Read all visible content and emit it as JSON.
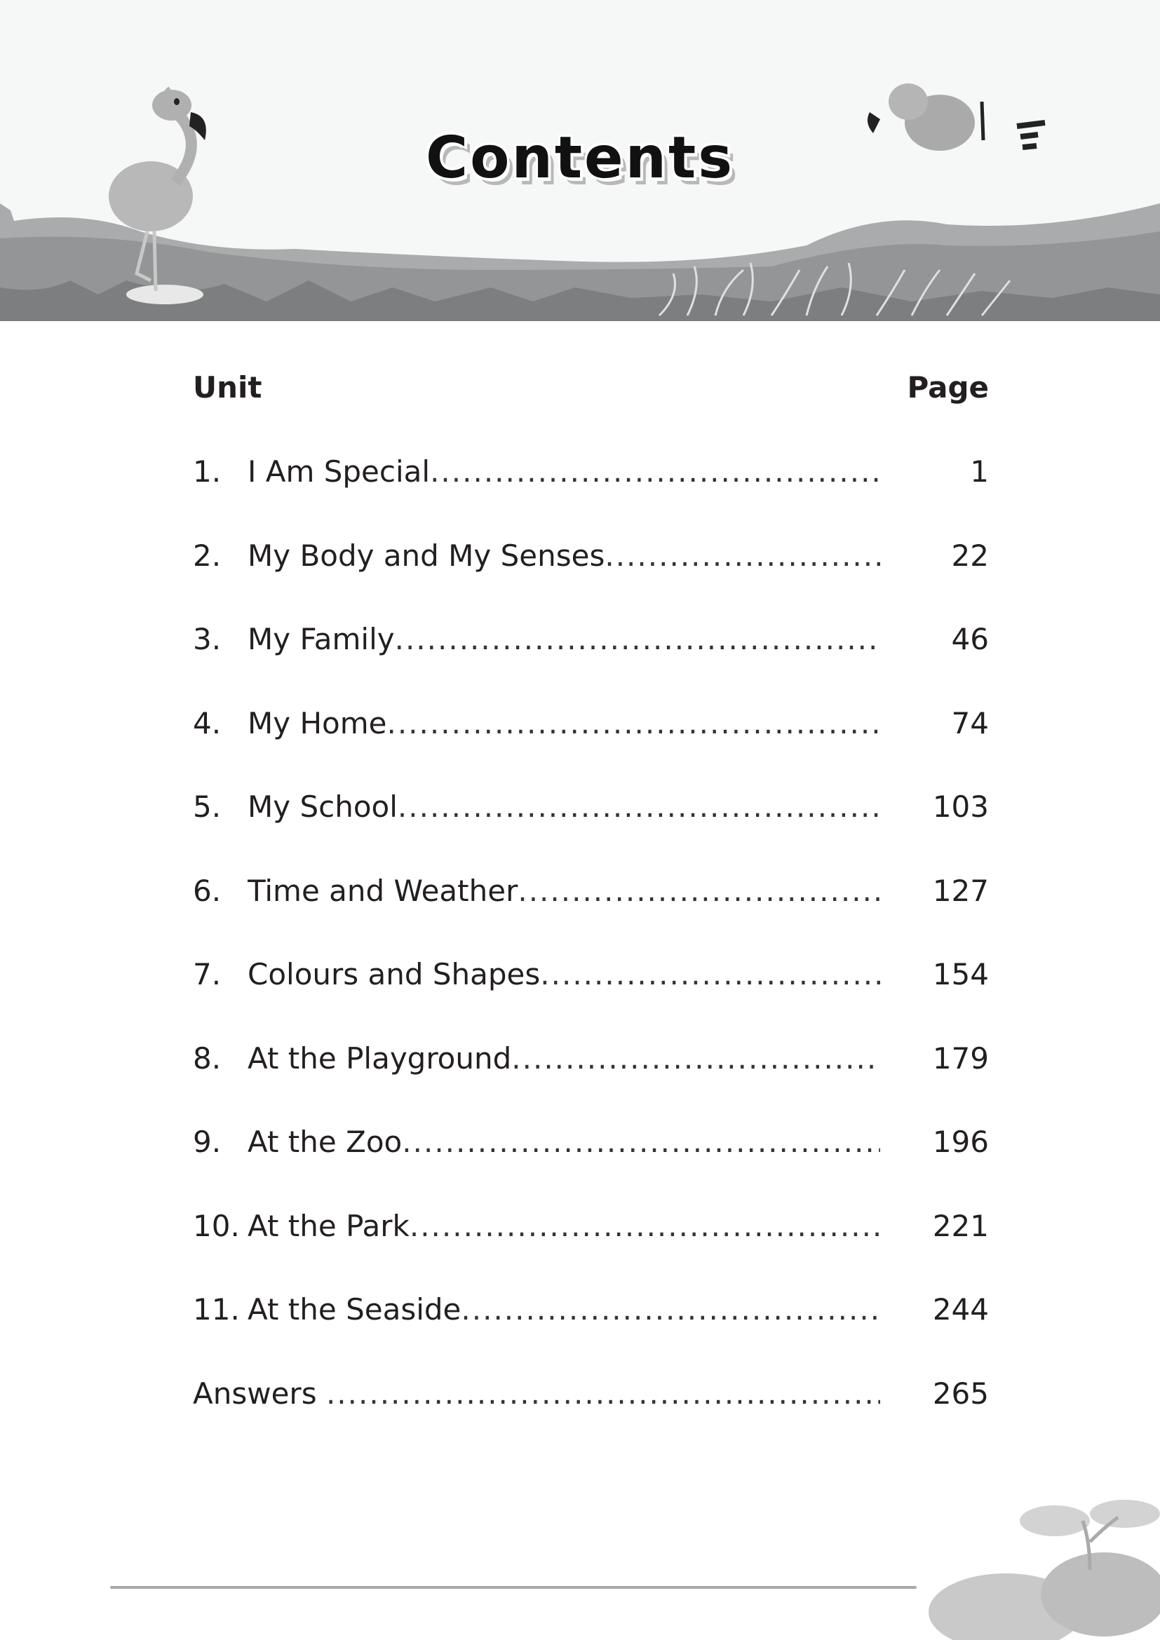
{
  "page": {
    "title": "Contents",
    "columns": {
      "unit": "Unit",
      "page": "Page"
    },
    "entries": [
      {
        "number": "1.",
        "title": "I Am Special",
        "page": "1"
      },
      {
        "number": "2.",
        "title": "My Body and My Senses",
        "page": "22"
      },
      {
        "number": "3.",
        "title": "My Family",
        "page": "46"
      },
      {
        "number": "4.",
        "title": "My Home",
        "page": "74"
      },
      {
        "number": "5.",
        "title": "My School",
        "page": "103"
      },
      {
        "number": "6.",
        "title": "Time and Weather",
        "page": "127"
      },
      {
        "number": "7.",
        "title": "Colours and Shapes",
        "page": "154"
      },
      {
        "number": "8.",
        "title": "At the Playground",
        "page": "179"
      },
      {
        "number": "9.",
        "title": "At the Zoo",
        "page": "196"
      },
      {
        "number": "10.",
        "title": "At the Park",
        "page": "221"
      },
      {
        "number": "11.",
        "title": "At the Seaside",
        "page": "244"
      }
    ],
    "answers": {
      "title": "Answers",
      "page": "265"
    },
    "illustrations": [
      "flamingo",
      "flying-bird",
      "hills",
      "grass",
      "leaves"
    ]
  }
}
